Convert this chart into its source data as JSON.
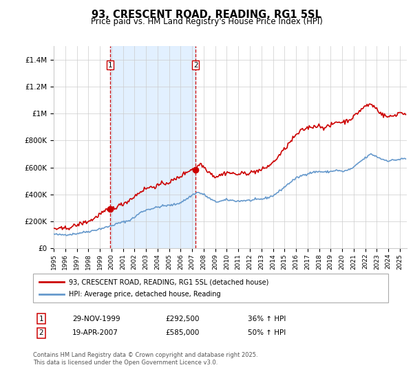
{
  "title": "93, CRESCENT ROAD, READING, RG1 5SL",
  "subtitle": "Price paid vs. HM Land Registry's House Price Index (HPI)",
  "sale1_date": "29-NOV-1999",
  "sale1_price": 292500,
  "sale1_label": "1",
  "sale1_pct": "36% ↑ HPI",
  "sale2_date": "19-APR-2007",
  "sale2_price": 585000,
  "sale2_label": "2",
  "sale2_pct": "50% ↑ HPI",
  "legend1": "93, CRESCENT ROAD, READING, RG1 5SL (detached house)",
  "legend2": "HPI: Average price, detached house, Reading",
  "footer": "Contains HM Land Registry data © Crown copyright and database right 2025.\nThis data is licensed under the Open Government Licence v3.0.",
  "red_color": "#cc0000",
  "blue_color": "#6699cc",
  "shade_color": "#ddeeff",
  "grid_color": "#cccccc",
  "bg_color": "#ffffff",
  "ylim": [
    0,
    1500000
  ],
  "yticks": [
    0,
    200000,
    400000,
    600000,
    800000,
    1000000,
    1200000,
    1400000
  ],
  "ytick_labels": [
    "£0",
    "£200K",
    "£400K",
    "£600K",
    "£800K",
    "£1M",
    "£1.2M",
    "£1.4M"
  ],
  "sale1_x": 1999.9,
  "sale2_x": 2007.3
}
